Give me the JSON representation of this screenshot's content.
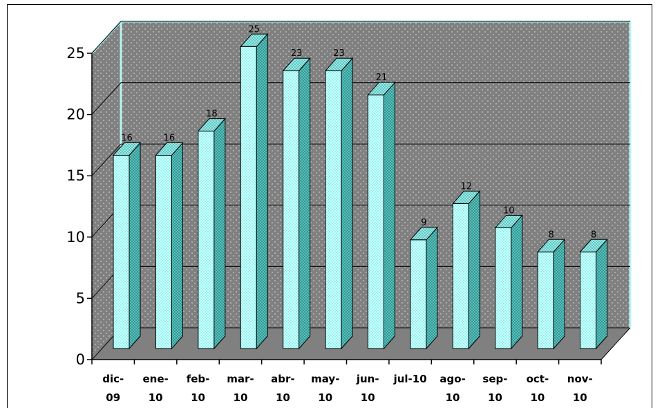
{
  "chart_data": {
    "type": "bar",
    "style": "3d-column",
    "title": "",
    "xlabel": "",
    "ylabel": "",
    "ylim": [
      0,
      25
    ],
    "yticks": [
      "0",
      "5",
      "10",
      "15",
      "20",
      "25"
    ],
    "grid": true,
    "legend": "none",
    "categories": [
      [
        "dic-",
        "09"
      ],
      [
        "ene-",
        "10"
      ],
      [
        "feb-",
        "10"
      ],
      [
        "mar-",
        "10"
      ],
      [
        "abr-",
        "10"
      ],
      [
        "may-",
        "10"
      ],
      [
        "jun-",
        "10"
      ],
      [
        "jul-10"
      ],
      [
        "ago-",
        "10"
      ],
      [
        "sep-",
        "10"
      ],
      [
        "oct-",
        "10"
      ],
      [
        "nov-",
        "10"
      ]
    ],
    "values": [
      16,
      16,
      18,
      25,
      23,
      23,
      21,
      9,
      12,
      10,
      8,
      8
    ],
    "data_labels": [
      "16",
      "16",
      "18",
      "25",
      "23",
      "23",
      "21",
      "9",
      "12",
      "10",
      "8",
      "8"
    ],
    "colors": {
      "bar_front": "#8ff7f3",
      "bar_side": "#2f9a96",
      "bar_top": "#5fc9c5",
      "back_wall": "#808080",
      "floor": "#808080",
      "side_wall": "#808080",
      "wall_edge": "#b8f4f4"
    }
  }
}
